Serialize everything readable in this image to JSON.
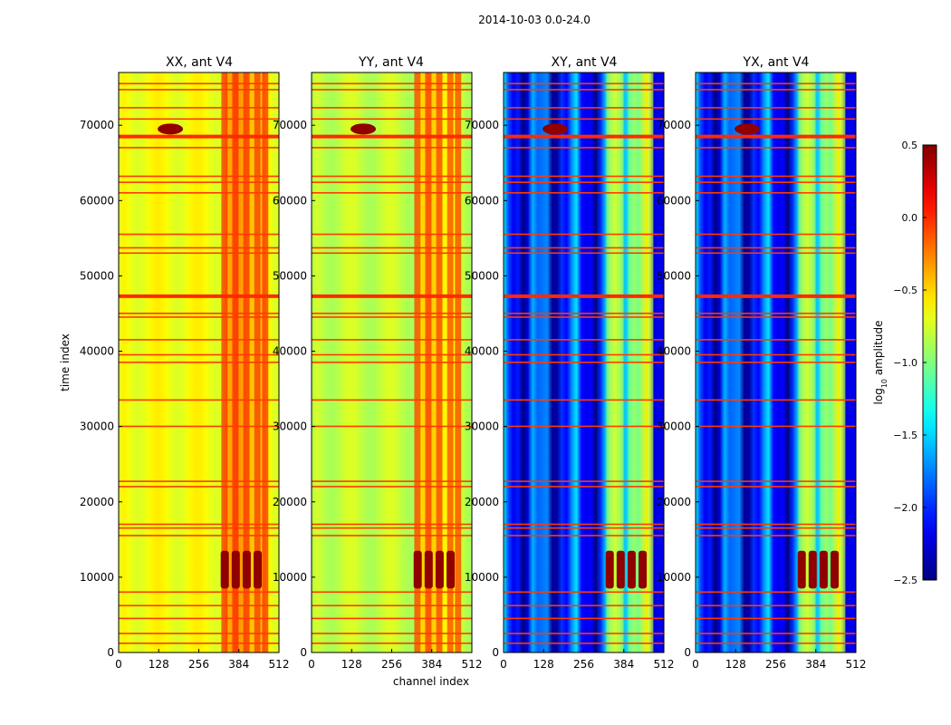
{
  "suptitle": "2014-10-03 0.0-24.0",
  "chart_data": {
    "type": "heatmap",
    "title": "2014-10-03 0.0-24.0",
    "xlabel": "channel index",
    "ylabel": "time index",
    "xlim": [
      0,
      512
    ],
    "ylim": [
      0,
      77000
    ],
    "xticks": [
      0,
      128,
      256,
      384,
      512
    ],
    "yticks": [
      0,
      10000,
      20000,
      30000,
      40000,
      50000,
      60000,
      70000
    ],
    "panels": [
      {
        "title": "XX, ant V4",
        "polarization": "XX",
        "base_level": -0.65,
        "left_y_labels": true
      },
      {
        "title": "YY, ant V4",
        "polarization": "YY",
        "base_level": -0.8,
        "left_y_labels": true
      },
      {
        "title": "XY, ant V4",
        "polarization": "XY",
        "base_level": -2.0,
        "left_y_labels": true
      },
      {
        "title": "YX, ant V4",
        "polarization": "YX",
        "base_level": -2.0,
        "left_y_labels": true
      }
    ],
    "colorbar": {
      "label": "log10 amplitude",
      "label_main": "log",
      "label_sub": "10",
      "label_rest": " amplitude",
      "range": [
        -2.5,
        0.5
      ],
      "ticks": [
        "0.5",
        "0.0",
        "−0.5",
        "−1.0",
        "−1.5",
        "−2.0",
        "−2.5"
      ],
      "tick_values": [
        0.5,
        0.0,
        -0.5,
        -1.0,
        -1.5,
        -2.0,
        -2.5
      ],
      "colormap": "jet"
    },
    "flagged_time_rows": [
      1200,
      2500,
      4500,
      6200,
      8000,
      15500,
      16500,
      17000,
      22000,
      22700,
      30000,
      33500,
      38500,
      39500,
      41500,
      44500,
      45000,
      47300,
      53000,
      53700,
      55500,
      61000,
      62400,
      63200,
      67000,
      68500,
      70800,
      72300,
      74700,
      75500
    ],
    "rfi_channel_range": [
      330,
      475
    ]
  }
}
